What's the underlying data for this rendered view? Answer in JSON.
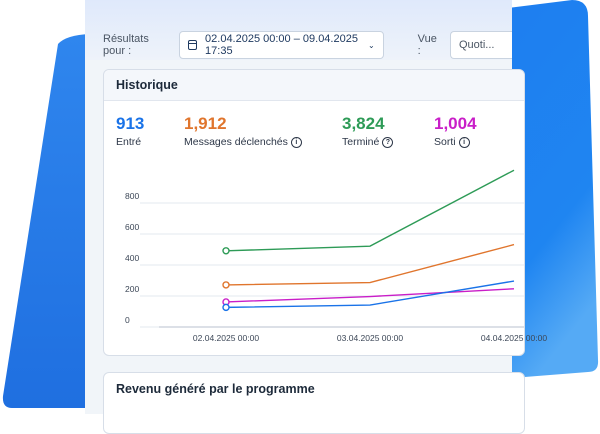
{
  "filters": {
    "results_label": "Résultats pour :",
    "date_range": "02.04.2025 00:00 – 09.04.2025 17:35",
    "view_label": "Vue :",
    "view_value": "Quoti..."
  },
  "history": {
    "title": "Historique",
    "kpis": [
      {
        "value": "913",
        "label": "Entré",
        "color": "#1a73e8",
        "info": false
      },
      {
        "value": "1,912",
        "label": "Messages déclenchés",
        "color": "#e0752d",
        "info": true,
        "info_icon": "info-icon"
      },
      {
        "value": "3,824",
        "label": "Terminé",
        "color": "#2e9b57",
        "info": true,
        "info_icon": "help-icon"
      },
      {
        "value": "1,004",
        "label": "Sorti",
        "color": "#c91ec8",
        "info": true,
        "info_icon": "info-icon"
      }
    ]
  },
  "chart_data": {
    "type": "line",
    "categories": [
      "02.04.2025 00:00",
      "03.04.2025 00:00",
      "04.04.2025 00:00"
    ],
    "y_ticks": [
      "0",
      "200",
      "400",
      "600",
      "800"
    ],
    "ylim": [
      0,
      900
    ],
    "series": [
      {
        "color": "#2e9b57",
        "values": [
          440,
          470,
          960
        ]
      },
      {
        "color": "#e0752d",
        "values": [
          220,
          235,
          480
        ]
      },
      {
        "color": "#c91ec8",
        "values": [
          110,
          145,
          195
        ]
      },
      {
        "color": "#1a73e8",
        "values": [
          75,
          90,
          245
        ]
      }
    ]
  },
  "revenue": {
    "title": "Revenu généré par le programme"
  },
  "colors": {
    "blue_shape_top": "#1e88e5",
    "blue_shape_bottom": "#1565d8"
  }
}
